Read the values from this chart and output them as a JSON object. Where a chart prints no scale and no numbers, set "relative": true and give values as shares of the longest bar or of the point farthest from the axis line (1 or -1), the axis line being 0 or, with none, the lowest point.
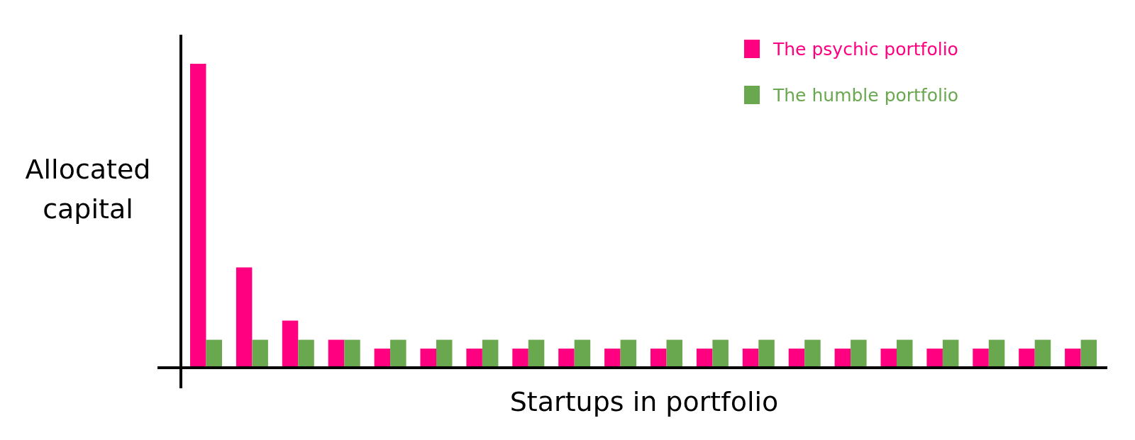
{
  "chart_data": {
    "type": "bar",
    "relative": true,
    "xlabel": "Startups in portfolio",
    "ylabel": "Allocated capital",
    "legend": "top right",
    "grid": false,
    "categories": [
      null,
      null,
      null,
      null,
      null,
      null,
      null,
      null,
      null,
      null,
      null,
      null,
      null,
      null,
      null,
      null,
      null,
      null,
      null,
      null
    ],
    "series": [
      {
        "name": "The psychic portfolio",
        "color": "#ff0080",
        "values": [
          1,
          0.33,
          0.155,
          0.092,
          0.063,
          0.063,
          0.063,
          0.063,
          0.063,
          0.063,
          0.063,
          0.063,
          0.063,
          0.063,
          0.063,
          0.063,
          0.063,
          0.063,
          0.063,
          0.063
        ]
      },
      {
        "name": "The humble portfolio",
        "color": "#6aa84f",
        "values": [
          0.092,
          0.092,
          0.092,
          0.092,
          0.092,
          0.092,
          0.092,
          0.092,
          0.092,
          0.092,
          0.092,
          0.092,
          0.092,
          0.092,
          0.092,
          0.092,
          0.092,
          0.092,
          0.092,
          0.092
        ]
      }
    ]
  }
}
